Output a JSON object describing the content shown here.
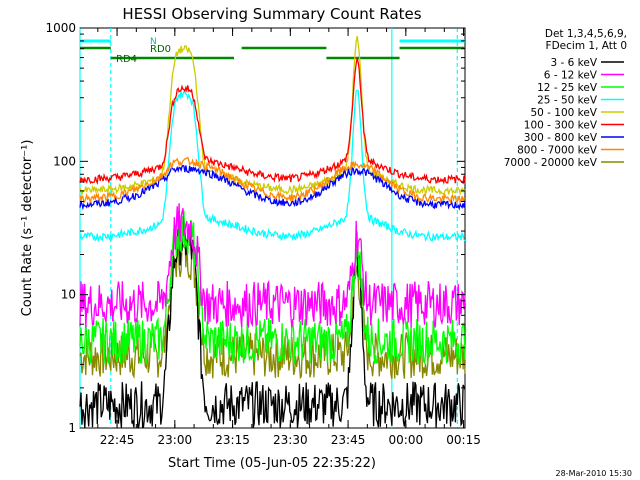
{
  "chart_data": {
    "type": "line",
    "title": "HESSI Observing Summary Count Rates",
    "xlabel": "Start Time (05-Jun-05 22:35:22)",
    "ylabel": "Count Rate (s⁻¹ detector⁻¹)",
    "y_scale": "log",
    "ylim": [
      1,
      1000
    ],
    "xlim_minutes_after_start": [
      0,
      100
    ],
    "y_ticks": [
      "1",
      "10",
      "100",
      "1000"
    ],
    "x_ticks": [
      {
        "label": "22:45",
        "min": 9.63
      },
      {
        "label": "23:00",
        "min": 24.63
      },
      {
        "label": "23:15",
        "min": 39.63
      },
      {
        "label": "23:30",
        "min": 54.63
      },
      {
        "label": "23:45",
        "min": 69.63
      },
      {
        "label": "00:00",
        "min": 84.63
      },
      {
        "label": "00:15",
        "min": 99.63
      }
    ],
    "legend_header": [
      "Det 1,3,4,5,6,9,",
      "FDecim 1, Att 0"
    ],
    "series": [
      {
        "name": "3 - 6 keV",
        "color": "#000000",
        "base": 1.5,
        "p1": 25,
        "p2": 20
      },
      {
        "name": "6 - 12 keV",
        "color": "#ff00ff",
        "base": 8.5,
        "p1": 33,
        "p2": 28
      },
      {
        "name": "12 - 25 keV",
        "color": "#00ff00",
        "base": 4.5,
        "p1": 30,
        "p2": 22
      },
      {
        "name": "25 - 50 keV",
        "color": "#00ffff",
        "base": 27,
        "p1": 320,
        "p2": 340
      },
      {
        "name": "50 - 100 keV",
        "color": "#cccc00",
        "base": 60,
        "p1": 690,
        "p2": 820
      },
      {
        "name": "100 - 300 keV",
        "color": "#ff0000",
        "base": 73,
        "p1": 350,
        "p2": 560
      },
      {
        "name": "300 - 800 keV",
        "color": "#0000ff",
        "base": 47,
        "p1": 88,
        "p2": 85
      },
      {
        "name": "800 - 7000 keV",
        "color": "#ff8800",
        "base": 52,
        "p1": 100,
        "p2": 92
      },
      {
        "name": "7000 - 20000 keV",
        "color": "#888800",
        "base": 3.5,
        "p1": 20,
        "p2": 15
      }
    ],
    "flare_peaks_min": [
      27,
      72
    ],
    "annotations": {
      "N_label": "N",
      "RD0_label": "RD0",
      "RD4_label": "RD4",
      "night_bars_min": [
        [
          0,
          8
        ],
        [
          83,
          100
        ]
      ],
      "saa_bars_min": [
        [
          8,
          83
        ]
      ],
      "cyan_vertical_solid_min": [
        0,
        81
      ],
      "cyan_vertical_dashed_min": [
        8,
        98
      ]
    },
    "grid": false,
    "legend_position": "right"
  },
  "footer": {
    "date_stamp": "28-Mar-2010 15:30"
  }
}
